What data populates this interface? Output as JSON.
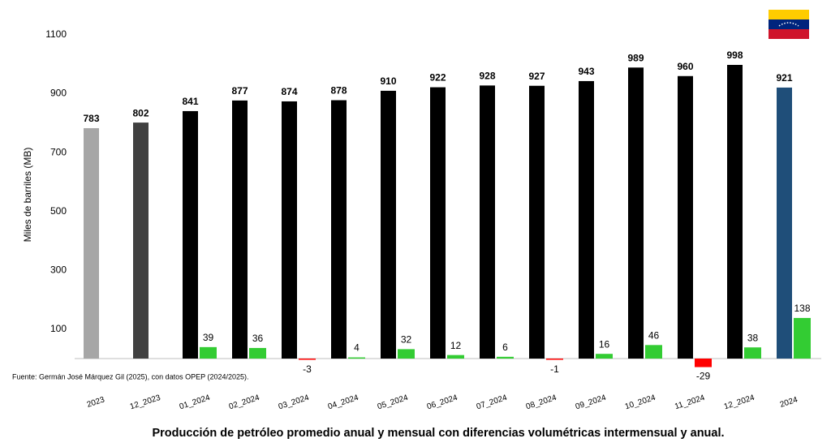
{
  "chart_data": {
    "type": "bar",
    "title": "Producción de petróleo promedio anual y mensual con diferencias volumétricas intermensual y anual.",
    "y_label": "Miles de barriles (MB)",
    "source": "Fuente: Germán José Márquez Gil (2025), con datos OPEP (2024/2025).",
    "categories": [
      "2023",
      "12_2023",
      "01_2024",
      "02_2024",
      "03_2024",
      "04_2024",
      "05_2024",
      "06_2024",
      "07_2024",
      "08_2024",
      "09_2024",
      "10_2024",
      "11_2024",
      "12_2024",
      "2024"
    ],
    "series": [
      {
        "values": [
          783,
          802,
          841,
          877,
          874,
          878,
          910,
          922,
          928,
          927,
          943,
          989,
          960,
          998,
          921
        ],
        "colors": [
          "#a6a6a6",
          "#404040",
          "#000000",
          "#000000",
          "#000000",
          "#000000",
          "#000000",
          "#000000",
          "#000000",
          "#000000",
          "#000000",
          "#000000",
          "#000000",
          "#000000",
          "#1f4e79"
        ]
      },
      {
        "values": [
          null,
          null,
          39,
          36,
          -3,
          4,
          32,
          12,
          6,
          -1,
          16,
          46,
          -29,
          38,
          138
        ],
        "color": "#33cc33",
        "negative_color": "#ff0000"
      }
    ],
    "ylim": [
      0,
      1100
    ],
    "yticks": [
      100,
      300,
      500,
      700,
      900,
      1100
    ],
    "grid": false
  }
}
